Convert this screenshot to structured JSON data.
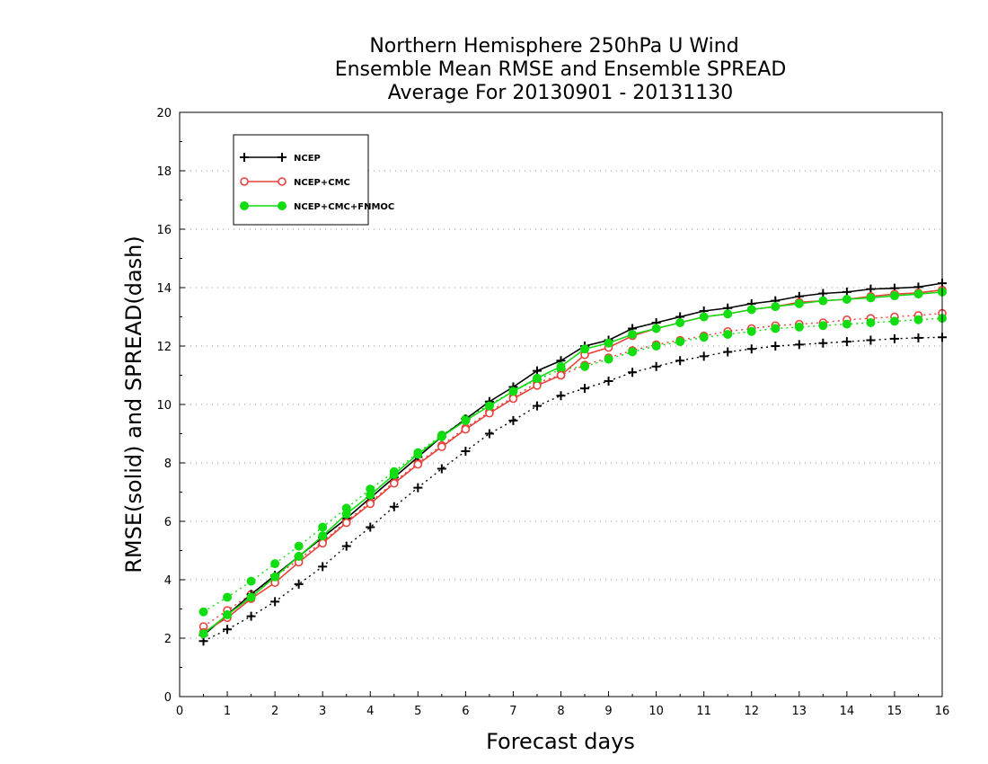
{
  "chart_data": {
    "type": "line",
    "title_lines": [
      "Northern Hemisphere 250hPa U Wind",
      "Ensemble Mean RMSE and Ensemble SPREAD",
      "Average For 20130901 - 20131130"
    ],
    "xlabel": "Forecast days",
    "ylabel": "RMSE(solid) and SPREAD(dash)",
    "xlim": [
      0,
      16
    ],
    "ylim": [
      0,
      20
    ],
    "x_ticks": [
      "0",
      "1",
      "2",
      "3",
      "4",
      "5",
      "6",
      "7",
      "8",
      "9",
      "10",
      "11",
      "12",
      "13",
      "14",
      "15",
      "16"
    ],
    "y_ticks": [
      "0",
      "2",
      "4",
      "6",
      "8",
      "10",
      "12",
      "14",
      "16",
      "18",
      "20"
    ],
    "grid": "horizontal dotted",
    "legend_position": "top-left",
    "x": [
      0.5,
      1,
      1.5,
      2,
      2.5,
      3,
      3.5,
      4,
      4.5,
      5,
      5.5,
      6,
      6.5,
      7,
      7.5,
      8,
      8.5,
      9,
      9.5,
      10,
      10.5,
      11,
      11.5,
      12,
      12.5,
      13,
      13.5,
      14,
      14.5,
      15,
      15.5,
      16
    ],
    "series": [
      {
        "name": "NCEP",
        "color": "#000000",
        "marker": "plus",
        "rmse": [
          2.1,
          2.8,
          3.5,
          4.15,
          4.8,
          5.45,
          6.1,
          6.8,
          7.5,
          8.2,
          8.9,
          9.5,
          10.1,
          10.6,
          11.15,
          11.5,
          12.0,
          12.2,
          12.6,
          12.8,
          13.0,
          13.2,
          13.3,
          13.45,
          13.55,
          13.7,
          13.8,
          13.85,
          13.95,
          13.98,
          14.02,
          14.15
        ],
        "spread": [
          1.9,
          2.3,
          2.75,
          3.25,
          3.85,
          4.45,
          5.15,
          5.8,
          6.5,
          7.15,
          7.8,
          8.4,
          9.0,
          9.45,
          9.95,
          10.3,
          10.55,
          10.8,
          11.1,
          11.3,
          11.5,
          11.65,
          11.8,
          11.9,
          12.0,
          12.05,
          12.1,
          12.15,
          12.2,
          12.25,
          12.28,
          12.3
        ]
      },
      {
        "name": "NCEP+CMC",
        "color": "#e8403a",
        "marker": "open-circle",
        "rmse": [
          2.2,
          2.7,
          3.35,
          3.9,
          4.6,
          5.25,
          5.95,
          6.6,
          7.3,
          7.95,
          8.55,
          9.15,
          9.7,
          10.2,
          10.65,
          11.0,
          11.7,
          11.95,
          12.35,
          12.6,
          12.8,
          13.0,
          13.1,
          13.25,
          13.35,
          13.5,
          13.55,
          13.6,
          13.7,
          13.78,
          13.82,
          13.92
        ],
        "spread": [
          2.4,
          2.95,
          3.5,
          4.1,
          4.7,
          5.3,
          6.0,
          6.65,
          7.35,
          8.0,
          8.6,
          9.2,
          9.75,
          10.25,
          10.75,
          11.0,
          11.35,
          11.6,
          11.85,
          12.05,
          12.2,
          12.35,
          12.5,
          12.6,
          12.7,
          12.75,
          12.8,
          12.9,
          12.95,
          13.0,
          13.05,
          13.12
        ]
      },
      {
        "name": "NCEP+CMC+FNMOC",
        "color": "#11dd11",
        "marker": "filled-circle",
        "rmse": [
          2.15,
          2.8,
          3.4,
          4.1,
          4.8,
          5.5,
          6.25,
          6.9,
          7.6,
          8.3,
          8.9,
          9.45,
          9.95,
          10.45,
          10.9,
          11.3,
          11.9,
          12.1,
          12.4,
          12.6,
          12.8,
          13.0,
          13.1,
          13.25,
          13.35,
          13.45,
          13.55,
          13.6,
          13.65,
          13.72,
          13.78,
          13.85
        ],
        "spread": [
          2.9,
          3.4,
          3.95,
          4.55,
          5.15,
          5.8,
          6.45,
          7.1,
          7.7,
          8.35,
          8.95,
          9.5,
          10.0,
          10.45,
          10.85,
          11.2,
          11.3,
          11.55,
          11.8,
          12.0,
          12.15,
          12.3,
          12.4,
          12.5,
          12.6,
          12.65,
          12.7,
          12.75,
          12.8,
          12.85,
          12.9,
          12.95
        ]
      }
    ]
  }
}
